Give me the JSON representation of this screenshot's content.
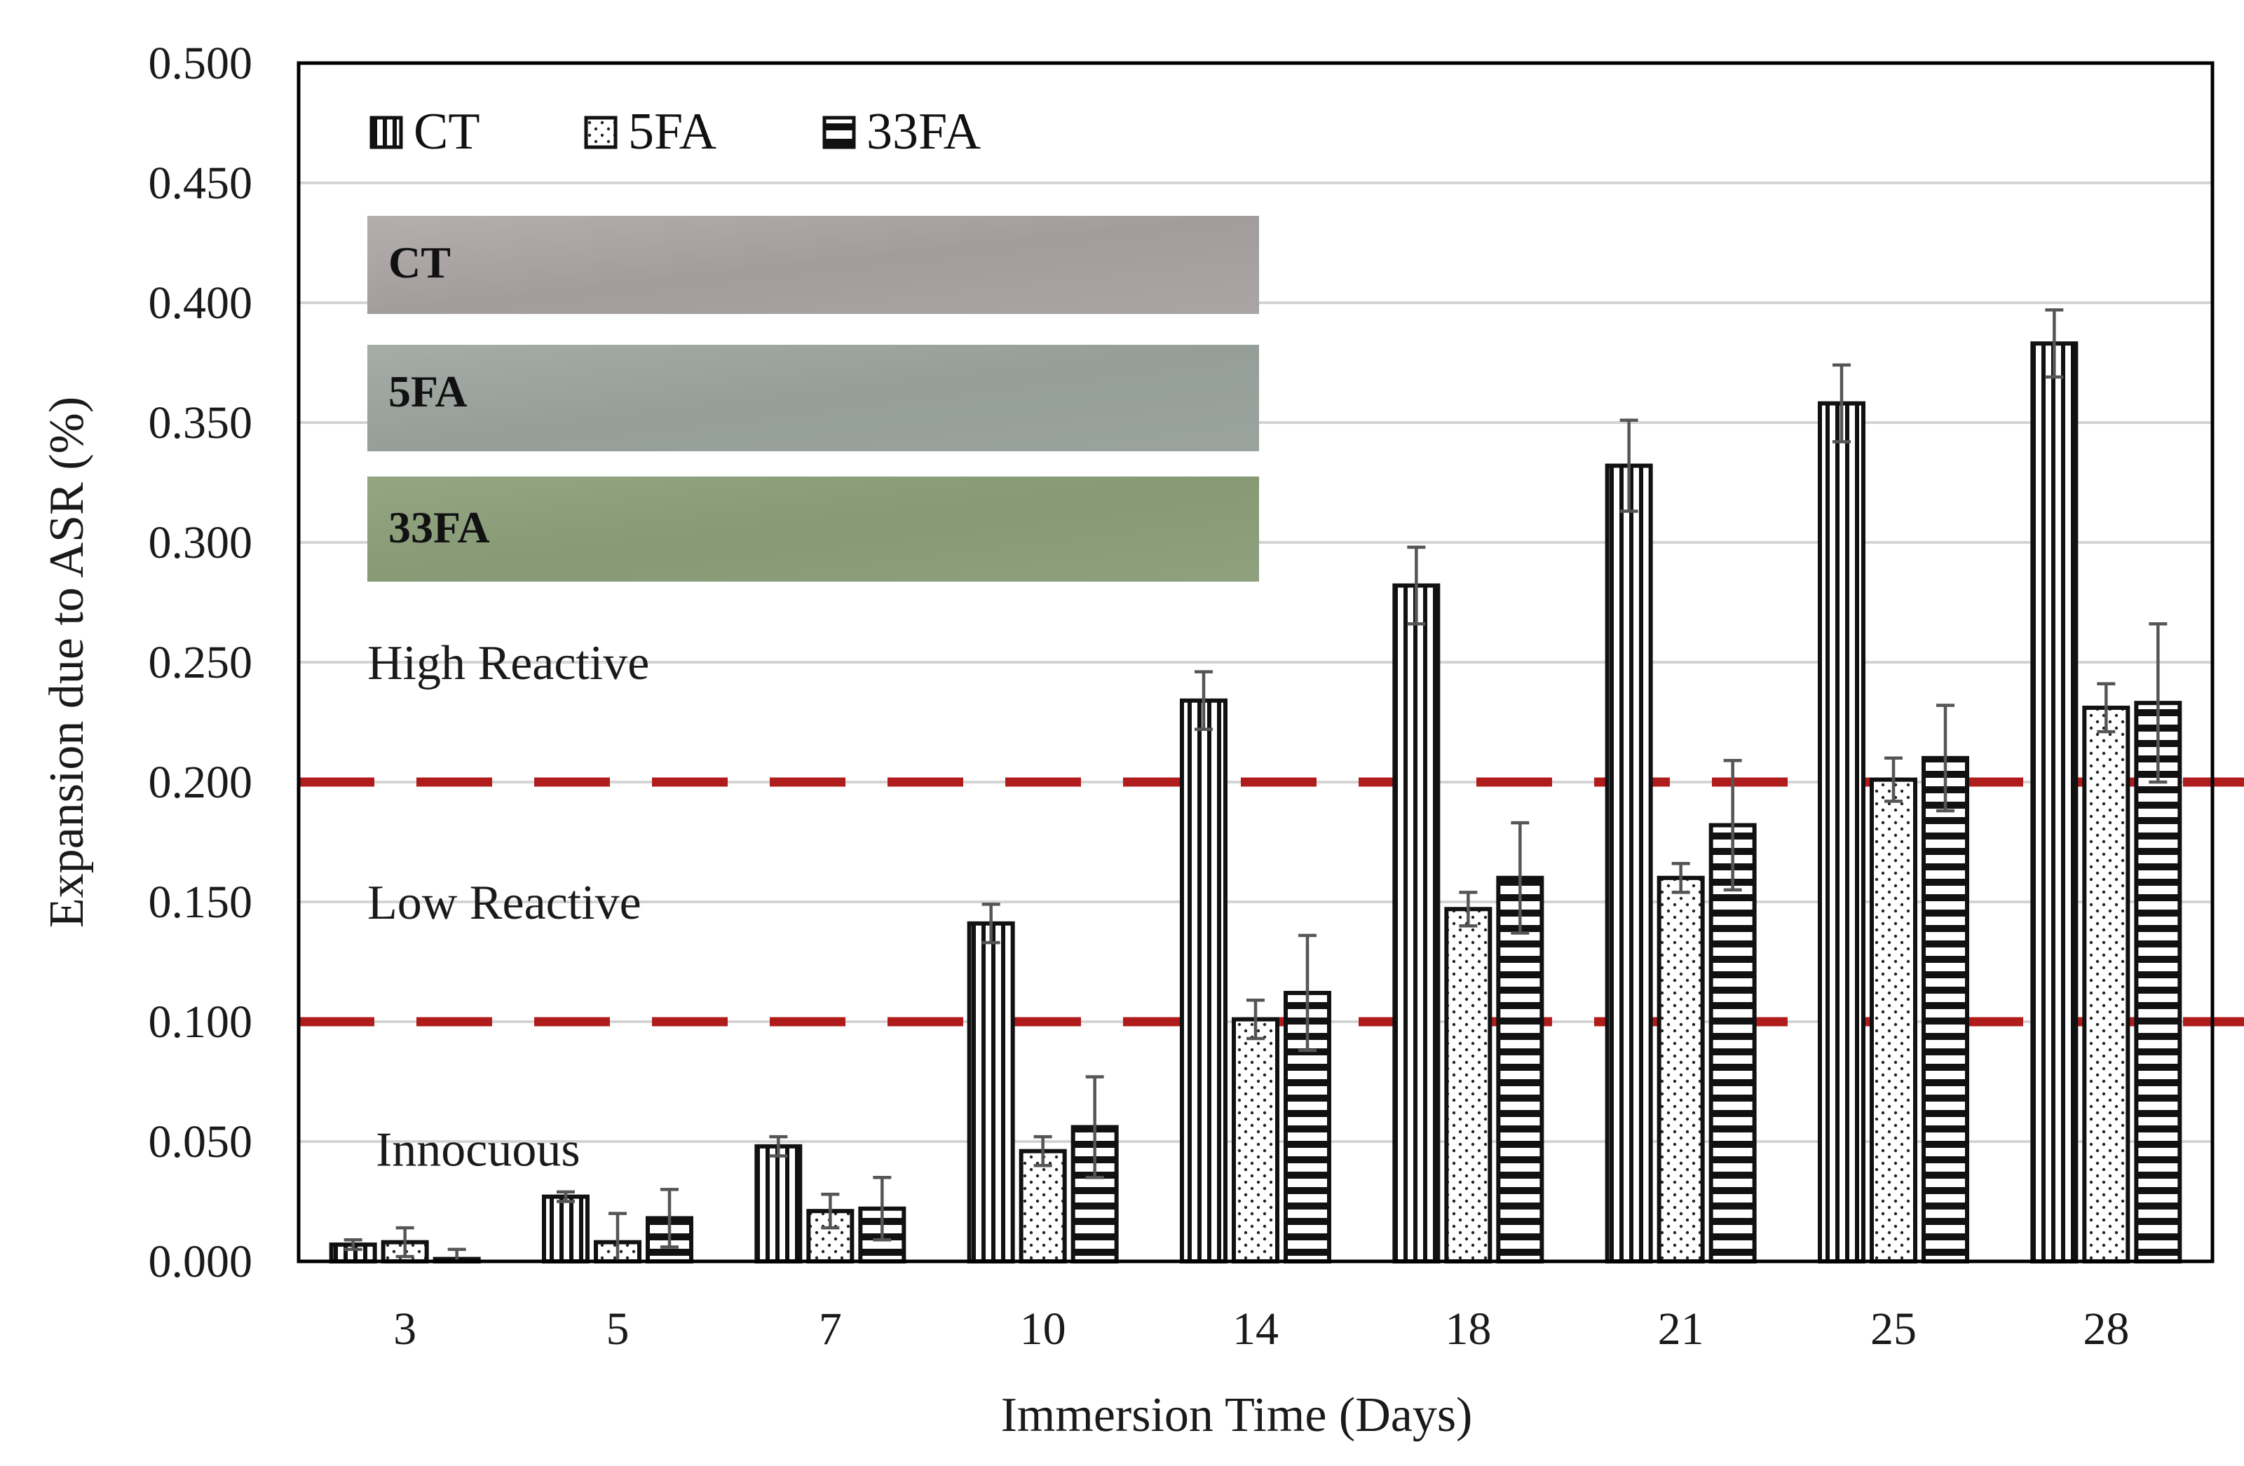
{
  "chart_data": {
    "type": "bar",
    "title": "",
    "xlabel": "Immersion Time (Days)",
    "ylabel": "Expansion due to ASR (%)",
    "ylim": [
      0,
      0.5
    ],
    "ytick_step": 0.05,
    "ytick_labels": [
      "0.000",
      "0.050",
      "0.100",
      "0.150",
      "0.200",
      "0.250",
      "0.300",
      "0.350",
      "0.400",
      "0.450",
      "0.500"
    ],
    "grid": true,
    "categories": [
      "3",
      "5",
      "7",
      "10",
      "14",
      "18",
      "21",
      "25",
      "28"
    ],
    "series": [
      {
        "name": "CT",
        "pattern": "vertical-lines",
        "values": [
          0.007,
          0.027,
          0.048,
          0.141,
          0.234,
          0.282,
          0.332,
          0.358,
          0.383
        ],
        "errors": [
          0.002,
          0.002,
          0.004,
          0.008,
          0.012,
          0.016,
          0.019,
          0.016,
          0.014
        ]
      },
      {
        "name": "5FA",
        "pattern": "dots",
        "values": [
          0.008,
          0.008,
          0.021,
          0.046,
          0.101,
          0.147,
          0.16,
          0.201,
          0.231
        ],
        "errors": [
          0.006,
          0.012,
          0.007,
          0.006,
          0.008,
          0.007,
          0.006,
          0.009,
          0.01
        ]
      },
      {
        "name": "33FA",
        "pattern": "horizontal-lines",
        "values": [
          0.001,
          0.018,
          0.022,
          0.056,
          0.112,
          0.16,
          0.182,
          0.21,
          0.233
        ],
        "errors": [
          0.004,
          0.012,
          0.013,
          0.021,
          0.024,
          0.023,
          0.027,
          0.022,
          0.033
        ]
      }
    ],
    "thresholds": [
      {
        "value": 0.1,
        "color": "#b01c1c",
        "style": "dashed"
      },
      {
        "value": 0.2,
        "color": "#b01c1c",
        "style": "dashed"
      }
    ],
    "zone_labels": [
      {
        "text": "High Reactive",
        "value": 0.25
      },
      {
        "text": "Low Reactive",
        "value": 0.15
      },
      {
        "text": "Innocuous",
        "value": 0.047
      }
    ],
    "legend": {
      "placement": "top-left",
      "entries": [
        "CT",
        "5FA",
        "33FA"
      ]
    },
    "inset_photos": [
      {
        "label": "CT",
        "color": "#a9a3a3"
      },
      {
        "label": "5FA",
        "color": "#99a19c"
      },
      {
        "label": "33FA",
        "color": "#8b9d7c"
      }
    ]
  }
}
